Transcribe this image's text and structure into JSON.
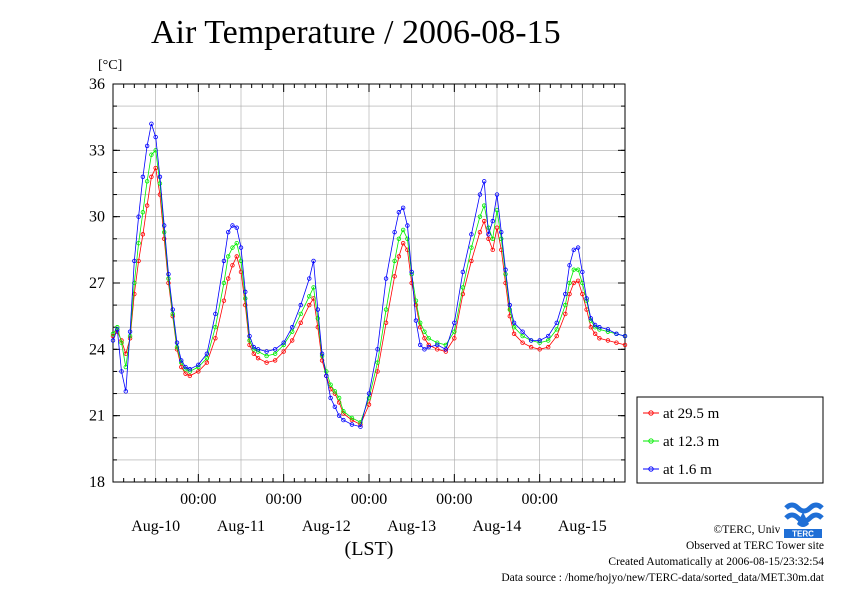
{
  "page": {
    "title": "Air Temperature / 2006-08-15",
    "credits": [
      "©TERC, Univ. Tsukuba",
      "Observed at TERC Tower site",
      "Created Automatically at 2006-08-15/23:32:54",
      "Data source : /home/hojyo/new/TERC-data/sorted_data/MET.30m.dat"
    ],
    "logo_text": "TERC"
  },
  "chart_data": {
    "type": "line",
    "title": "Air Temperature / 2006-08-15",
    "ylabel": "[°C]",
    "xlabel": "(LST)",
    "ylim": [
      18,
      36
    ],
    "yticks": [
      18,
      21,
      24,
      27,
      30,
      33,
      36
    ],
    "xlim": [
      0,
      6
    ],
    "x_unit": "days from Aug-10 00:00",
    "xtick_time_labels": [
      "00:00",
      "00:00",
      "00:00",
      "00:00",
      "00:00"
    ],
    "xtick_time_positions": [
      1,
      2,
      3,
      4,
      5
    ],
    "x_day_labels": [
      "Aug-10",
      "Aug-11",
      "Aug-12",
      "Aug-13",
      "Aug-14",
      "Aug-15"
    ],
    "grid": true,
    "legend_position": "right",
    "series": [
      {
        "name": "at 29.5 m",
        "color": "#ff0000",
        "x": [
          0.0,
          0.05,
          0.1,
          0.15,
          0.2,
          0.25,
          0.3,
          0.35,
          0.4,
          0.45,
          0.5,
          0.55,
          0.6,
          0.65,
          0.7,
          0.75,
          0.8,
          0.85,
          0.9,
          1.0,
          1.1,
          1.2,
          1.3,
          1.35,
          1.4,
          1.45,
          1.5,
          1.55,
          1.6,
          1.65,
          1.7,
          1.8,
          1.9,
          2.0,
          2.1,
          2.2,
          2.3,
          2.35,
          2.4,
          2.45,
          2.5,
          2.55,
          2.6,
          2.65,
          2.7,
          2.8,
          2.9,
          3.0,
          3.1,
          3.2,
          3.3,
          3.35,
          3.4,
          3.45,
          3.5,
          3.55,
          3.6,
          3.65,
          3.7,
          3.8,
          3.9,
          4.0,
          4.1,
          4.2,
          4.3,
          4.35,
          4.4,
          4.45,
          4.5,
          4.55,
          4.6,
          4.65,
          4.7,
          4.8,
          4.9,
          5.0,
          5.1,
          5.2,
          5.3,
          5.35,
          5.4,
          5.45,
          5.5,
          5.55,
          5.6,
          5.65,
          5.7,
          5.8,
          5.9,
          6.0
        ],
        "y": [
          24.6,
          24.8,
          24.4,
          23.8,
          24.5,
          26.5,
          28.0,
          29.2,
          30.5,
          31.8,
          32.2,
          31.0,
          29.0,
          27.0,
          25.5,
          24.0,
          23.2,
          22.9,
          22.8,
          23.0,
          23.4,
          24.5,
          26.2,
          27.2,
          27.8,
          28.2,
          27.5,
          26.0,
          24.2,
          23.8,
          23.6,
          23.4,
          23.5,
          23.9,
          24.4,
          25.2,
          26.0,
          26.3,
          25.0,
          23.5,
          22.8,
          22.2,
          22.0,
          21.6,
          21.1,
          20.8,
          20.6,
          21.5,
          23.0,
          25.2,
          27.3,
          28.2,
          28.8,
          28.5,
          27.0,
          26.0,
          25.0,
          24.5,
          24.2,
          24.0,
          23.9,
          24.5,
          26.5,
          28.0,
          29.3,
          29.8,
          29.0,
          28.5,
          29.5,
          28.5,
          27.0,
          25.5,
          24.7,
          24.3,
          24.1,
          24.0,
          24.1,
          24.6,
          25.6,
          26.5,
          27.0,
          27.1,
          26.5,
          25.8,
          25.0,
          24.7,
          24.5,
          24.4,
          24.3,
          24.2
        ]
      },
      {
        "name": "at 12.3 m",
        "color": "#00ee00",
        "x": [
          0.0,
          0.05,
          0.1,
          0.15,
          0.2,
          0.25,
          0.3,
          0.35,
          0.4,
          0.45,
          0.5,
          0.55,
          0.6,
          0.65,
          0.7,
          0.75,
          0.8,
          0.85,
          0.9,
          1.0,
          1.1,
          1.2,
          1.3,
          1.35,
          1.4,
          1.45,
          1.5,
          1.55,
          1.6,
          1.65,
          1.7,
          1.8,
          1.9,
          2.0,
          2.1,
          2.2,
          2.3,
          2.35,
          2.4,
          2.45,
          2.5,
          2.55,
          2.6,
          2.65,
          2.7,
          2.8,
          2.9,
          3.0,
          3.1,
          3.2,
          3.3,
          3.35,
          3.4,
          3.45,
          3.5,
          3.55,
          3.6,
          3.65,
          3.7,
          3.8,
          3.9,
          4.0,
          4.1,
          4.2,
          4.3,
          4.35,
          4.4,
          4.45,
          4.5,
          4.55,
          4.6,
          4.65,
          4.7,
          4.8,
          4.9,
          5.0,
          5.1,
          5.2,
          5.3,
          5.35,
          5.4,
          5.45,
          5.5,
          5.55,
          5.6,
          5.65,
          5.7,
          5.8,
          5.9,
          6.0
        ],
        "y": [
          24.7,
          25.0,
          24.3,
          23.2,
          24.6,
          27.0,
          28.8,
          30.2,
          31.6,
          32.8,
          33.0,
          31.5,
          29.3,
          27.2,
          25.6,
          24.1,
          23.4,
          23.1,
          23.0,
          23.2,
          23.6,
          25.0,
          27.0,
          28.2,
          28.6,
          28.8,
          28.0,
          26.3,
          24.4,
          24.0,
          23.9,
          23.7,
          23.8,
          24.2,
          24.8,
          25.6,
          26.4,
          26.8,
          25.4,
          23.7,
          23.0,
          22.4,
          22.1,
          21.8,
          21.2,
          20.9,
          20.7,
          21.8,
          23.4,
          25.8,
          28.0,
          29.0,
          29.4,
          29.0,
          27.4,
          26.2,
          25.2,
          24.8,
          24.5,
          24.3,
          24.2,
          24.8,
          26.8,
          28.6,
          30.0,
          30.5,
          29.5,
          29.0,
          30.3,
          29.0,
          27.4,
          25.8,
          25.0,
          24.6,
          24.4,
          24.3,
          24.4,
          24.9,
          26.0,
          27.0,
          27.6,
          27.6,
          27.0,
          26.2,
          25.3,
          25.0,
          24.9,
          24.8,
          24.7,
          24.6
        ]
      },
      {
        "name": "at 1.6 m",
        "color": "#0000ff",
        "x": [
          0.0,
          0.05,
          0.1,
          0.15,
          0.2,
          0.25,
          0.3,
          0.35,
          0.4,
          0.45,
          0.5,
          0.55,
          0.6,
          0.65,
          0.7,
          0.75,
          0.8,
          0.85,
          0.9,
          1.0,
          1.1,
          1.2,
          1.3,
          1.35,
          1.4,
          1.45,
          1.5,
          1.55,
          1.6,
          1.65,
          1.7,
          1.8,
          1.9,
          2.0,
          2.1,
          2.2,
          2.3,
          2.35,
          2.4,
          2.45,
          2.5,
          2.55,
          2.6,
          2.65,
          2.7,
          2.8,
          2.9,
          3.0,
          3.1,
          3.2,
          3.3,
          3.35,
          3.4,
          3.45,
          3.5,
          3.55,
          3.6,
          3.65,
          3.7,
          3.8,
          3.9,
          4.0,
          4.1,
          4.2,
          4.3,
          4.35,
          4.4,
          4.45,
          4.5,
          4.55,
          4.6,
          4.65,
          4.7,
          4.8,
          4.9,
          5.0,
          5.1,
          5.2,
          5.3,
          5.35,
          5.4,
          5.45,
          5.5,
          5.55,
          5.6,
          5.65,
          5.7,
          5.8,
          5.9,
          6.0
        ],
        "y": [
          24.4,
          24.9,
          23.0,
          22.1,
          24.8,
          28.0,
          30.0,
          31.8,
          33.2,
          34.2,
          33.6,
          31.8,
          29.6,
          27.4,
          25.8,
          24.3,
          23.5,
          23.2,
          23.1,
          23.3,
          23.8,
          25.6,
          28.0,
          29.3,
          29.6,
          29.5,
          28.6,
          26.6,
          24.6,
          24.1,
          24.0,
          23.9,
          24.0,
          24.3,
          25.0,
          26.0,
          27.2,
          28.0,
          25.8,
          23.8,
          22.8,
          21.8,
          21.4,
          21.0,
          20.8,
          20.6,
          20.5,
          22.0,
          24.0,
          27.2,
          29.3,
          30.2,
          30.4,
          29.6,
          27.5,
          25.3,
          24.2,
          24.0,
          24.1,
          24.2,
          24.0,
          25.2,
          27.5,
          29.2,
          31.0,
          31.6,
          29.2,
          29.8,
          31.0,
          29.3,
          27.6,
          26.0,
          25.2,
          24.8,
          24.4,
          24.4,
          24.6,
          25.2,
          26.5,
          27.8,
          28.5,
          28.6,
          27.5,
          26.3,
          25.4,
          25.1,
          25.0,
          24.9,
          24.7,
          24.6
        ]
      }
    ]
  }
}
